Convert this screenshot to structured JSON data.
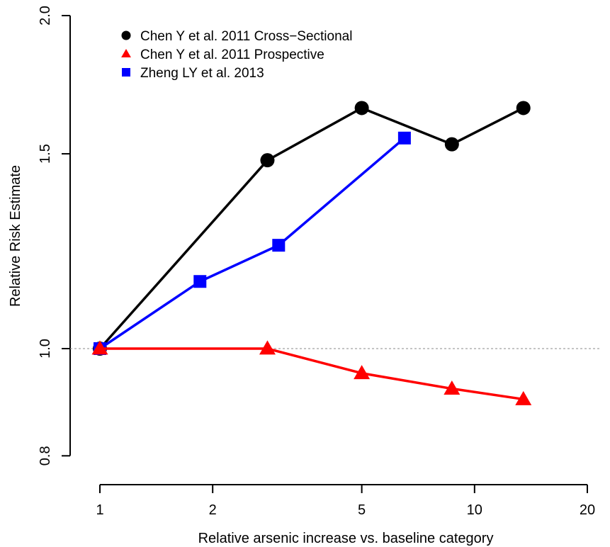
{
  "chart_data": {
    "type": "line",
    "title": "",
    "xlabel": "Relative arsenic increase vs. baseline category",
    "ylabel": "Relative Risk Estimate",
    "x_scale": "log",
    "y_scale": "log",
    "xlim": [
      1,
      20
    ],
    "ylim": [
      0.8,
      2.0
    ],
    "x_ticks": [
      1,
      2,
      5,
      10,
      20
    ],
    "x_tick_labels": [
      "1",
      "2",
      "5",
      "10",
      "20"
    ],
    "y_ticks": [
      0.8,
      1.0,
      1.5,
      2.0
    ],
    "y_tick_labels": [
      "0.8",
      "1.0",
      "1.5",
      "2.0"
    ],
    "reference_line": {
      "y": 1.0,
      "style": "dotted",
      "color": "#888888"
    },
    "grid": false,
    "legend_position": "top-left",
    "series": [
      {
        "name": "Chen Y et al. 2011 Cross−Sectional",
        "marker": "circle",
        "color": "#000000",
        "x": [
          1.0,
          2.8,
          5.0,
          8.7,
          13.5
        ],
        "y": [
          1.0,
          1.48,
          1.65,
          1.53,
          1.65
        ]
      },
      {
        "name": "Chen Y et al. 2011 Prospective",
        "marker": "triangle",
        "color": "#ff0000",
        "x": [
          1.0,
          2.8,
          5.0,
          8.7,
          13.5
        ],
        "y": [
          1.0,
          1.0,
          0.95,
          0.92,
          0.9
        ]
      },
      {
        "name": "Zheng LY et al. 2013",
        "marker": "square",
        "color": "#0000ff",
        "x": [
          1.0,
          1.85,
          3.0,
          6.5
        ],
        "y": [
          1.0,
          1.15,
          1.24,
          1.55
        ]
      }
    ]
  }
}
